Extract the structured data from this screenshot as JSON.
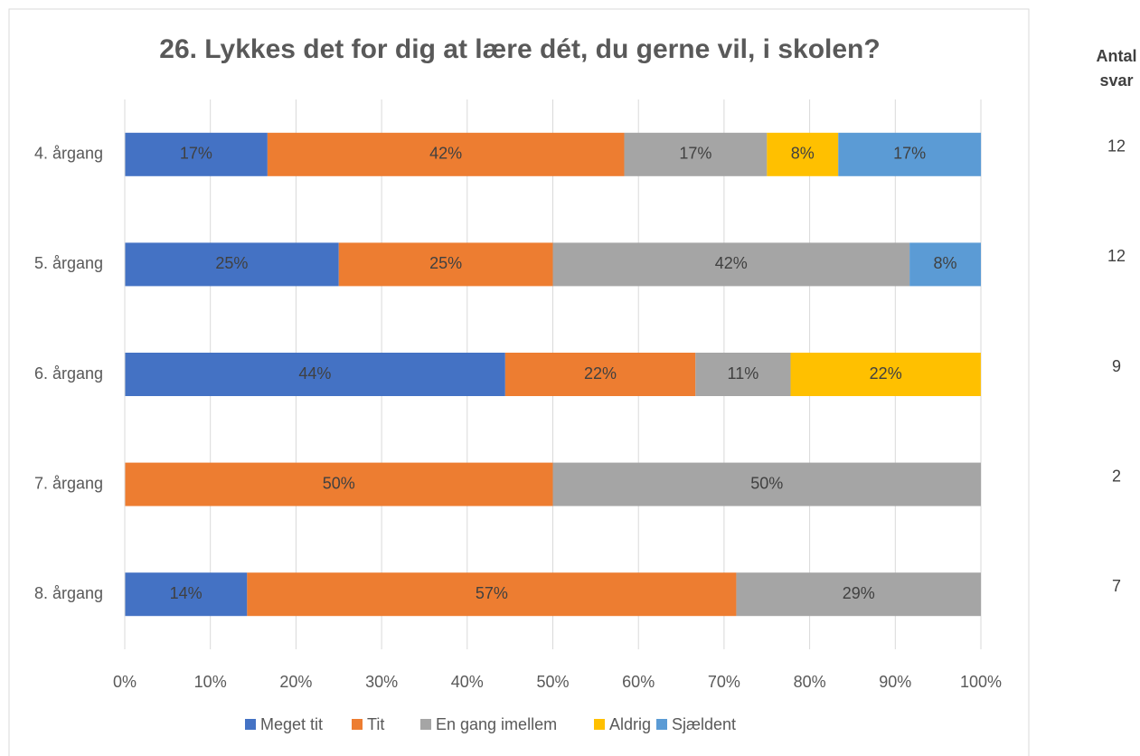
{
  "chart_data": {
    "type": "stacked_barh",
    "title": "26. Lykkes det for dig at lære dét, du gerne vil, i skolen?",
    "categories": [
      "4. årgang",
      "5. årgang",
      "6. årgang",
      "7. årgang",
      "8. årgang"
    ],
    "series": [
      {
        "name": "Meget tit",
        "color": "#4472c4",
        "values": [
          16.67,
          25,
          44.44,
          null,
          14.29
        ],
        "value_labels": [
          "17%",
          "25%",
          "44%",
          null,
          "14%"
        ]
      },
      {
        "name": "Tit",
        "color": "#ed7d31",
        "values": [
          41.67,
          25,
          22.22,
          50,
          57.14
        ],
        "value_labels": [
          "42%",
          "25%",
          "22%",
          "50%",
          "57%"
        ]
      },
      {
        "name": "En gang imellem",
        "color": "#a5a5a5",
        "values": [
          16.67,
          41.67,
          11.11,
          50,
          28.57
        ],
        "value_labels": [
          "17%",
          "42%",
          "11%",
          "50%",
          "29%"
        ]
      },
      {
        "name": "Aldrig",
        "color": "#ffc000",
        "values": [
          8.33,
          null,
          22.22,
          null,
          null
        ],
        "value_labels": [
          "8%",
          null,
          "22%",
          null,
          null
        ]
      },
      {
        "name": "Sjældent",
        "color": "#5b9bd5",
        "values": [
          16.67,
          8.33,
          null,
          null,
          null
        ],
        "value_labels": [
          "17%",
          "8%",
          null,
          null,
          null
        ]
      }
    ],
    "xlim": [
      0,
      100
    ],
    "xticks": [
      {
        "value": 0,
        "label": "0%"
      },
      {
        "value": 10,
        "label": "10%"
      },
      {
        "value": 20,
        "label": "20%"
      },
      {
        "value": 30,
        "label": "30%"
      },
      {
        "value": 40,
        "label": "40%"
      },
      {
        "value": 50,
        "label": "50%"
      },
      {
        "value": 60,
        "label": "60%"
      },
      {
        "value": 70,
        "label": "70%"
      },
      {
        "value": 80,
        "label": "80%"
      },
      {
        "value": 90,
        "label": "90%"
      },
      {
        "value": 100,
        "label": "100%"
      }
    ],
    "grid": true,
    "legend": "bottom",
    "counts_title": [
      "Antal",
      "svar"
    ],
    "counts": [
      12,
      12,
      9,
      2,
      7
    ]
  }
}
